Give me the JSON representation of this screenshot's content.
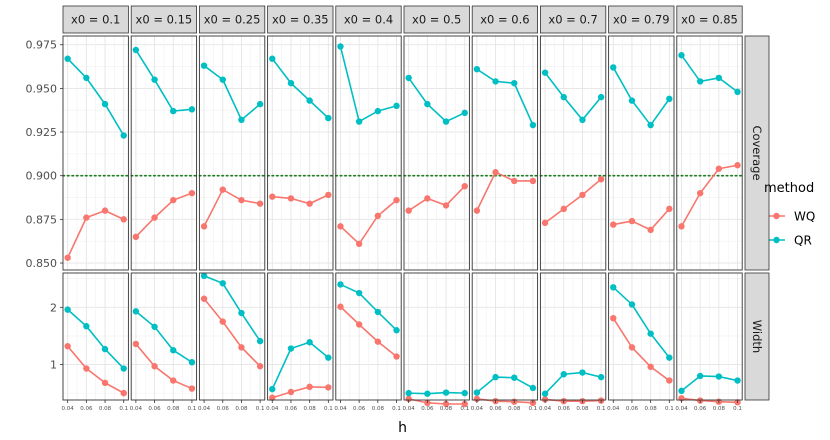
{
  "chart_data": {
    "type": "line",
    "facet_columns": [
      "x0 = 0.1",
      "x0 = 0.15",
      "x0 = 0.25",
      "x0 = 0.35",
      "x0 = 0.4",
      "x0 = 0.5",
      "x0 = 0.6",
      "x0 = 0.7",
      "x0 = 0.79",
      "x0 = 0.85"
    ],
    "facet_rows": [
      "Coverage",
      "Width"
    ],
    "x": [
      0.04,
      0.06,
      0.08,
      0.1
    ],
    "x_tick_labels": [
      "0.04",
      "0.06",
      "0.08",
      "0.1"
    ],
    "xlabel": "h",
    "ylabel": "",
    "coverage_ylim": [
      0.846,
      0.98
    ],
    "coverage_yticks": [
      0.85,
      0.875,
      0.9,
      0.925,
      0.95,
      0.975
    ],
    "coverage_ytick_labels": [
      "0.850",
      "0.875",
      "0.900",
      "0.925",
      "0.950",
      "0.975"
    ],
    "width_ylim": [
      0.38,
      2.6
    ],
    "width_yticks": [
      1,
      2
    ],
    "width_ytick_labels": [
      "1",
      "2"
    ],
    "reference_line": {
      "row": "Coverage",
      "y": 0.9,
      "style": "dotted",
      "color": "#1e7b1e"
    },
    "legend": {
      "title": "method",
      "position": "right"
    },
    "series": [
      {
        "name": "WQ",
        "color": "#F8766D",
        "coverage": [
          [
            0.853,
            0.876,
            0.88,
            0.875
          ],
          [
            0.865,
            0.876,
            0.886,
            0.89
          ],
          [
            0.871,
            0.892,
            0.886,
            0.884
          ],
          [
            0.888,
            0.887,
            0.884,
            0.889
          ],
          [
            0.871,
            0.861,
            0.877,
            0.886
          ],
          [
            0.88,
            0.887,
            0.883,
            0.894
          ],
          [
            0.88,
            0.902,
            0.897,
            0.897
          ],
          [
            0.873,
            0.881,
            0.889,
            0.898
          ],
          [
            0.872,
            0.874,
            0.869,
            0.881
          ],
          [
            0.871,
            0.89,
            0.904,
            0.906
          ]
        ],
        "width": [
          [
            1.32,
            0.93,
            0.68,
            0.5
          ],
          [
            1.36,
            0.97,
            0.72,
            0.58
          ],
          [
            2.15,
            1.75,
            1.3,
            0.97
          ],
          [
            0.42,
            0.52,
            0.61,
            0.6
          ],
          [
            2.01,
            1.7,
            1.4,
            1.14
          ],
          [
            0.4,
            0.33,
            0.31,
            0.31
          ],
          [
            0.4,
            0.36,
            0.35,
            0.33
          ],
          [
            0.39,
            0.36,
            0.36,
            0.37
          ],
          [
            1.81,
            1.3,
            0.96,
            0.72
          ],
          [
            0.41,
            0.37,
            0.35,
            0.34
          ]
        ]
      },
      {
        "name": "QR",
        "color": "#00BFC4",
        "coverage": [
          [
            0.967,
            0.956,
            0.941,
            0.923
          ],
          [
            0.972,
            0.955,
            0.937,
            0.938
          ],
          [
            0.963,
            0.955,
            0.932,
            0.941
          ],
          [
            0.967,
            0.953,
            0.943,
            0.933
          ],
          [
            0.974,
            0.931,
            0.937,
            0.94
          ],
          [
            0.956,
            0.941,
            0.931,
            0.936
          ],
          [
            0.961,
            0.954,
            0.953,
            0.929
          ],
          [
            0.959,
            0.945,
            0.932,
            0.945
          ],
          [
            0.962,
            0.943,
            0.929,
            0.944
          ],
          [
            0.969,
            0.954,
            0.956,
            0.948
          ]
        ],
        "width": [
          [
            1.96,
            1.67,
            1.27,
            0.93
          ],
          [
            1.93,
            1.66,
            1.25,
            1.04
          ],
          [
            2.55,
            2.42,
            1.9,
            1.41
          ],
          [
            0.57,
            1.28,
            1.39,
            1.12
          ],
          [
            2.4,
            2.25,
            1.92,
            1.6
          ],
          [
            0.5,
            0.49,
            0.51,
            0.5
          ],
          [
            0.51,
            0.78,
            0.77,
            0.59
          ],
          [
            0.49,
            0.83,
            0.86,
            0.78
          ],
          [
            2.35,
            2.05,
            1.54,
            1.12
          ],
          [
            0.54,
            0.8,
            0.79,
            0.72
          ]
        ]
      }
    ]
  }
}
